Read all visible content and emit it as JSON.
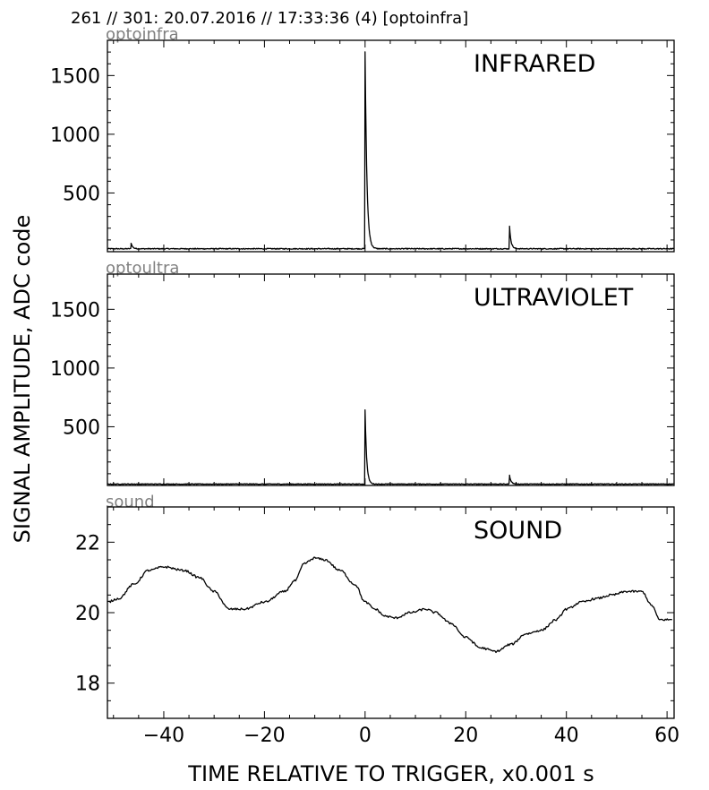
{
  "header": "261 // 301:   20.07.2016 // 17:33:36 (4)  [optoinfra]",
  "ylabel": "SIGNAL AMPLITUDE,  ADC code",
  "xlabel": "TIME RELATIVE TO TRIGGER,   x0.001 s",
  "chart_data": [
    {
      "type": "line",
      "subtitle": "optoinfra",
      "title": "INFRARED",
      "xlim": [
        -51.2,
        61.4
      ],
      "ylim": [
        0,
        1800
      ],
      "yticks": [
        500,
        1000,
        1500
      ],
      "ytick_labels": [
        "500",
        "1000",
        "1500"
      ],
      "xticks": [
        -40,
        -20,
        0,
        20,
        40,
        60
      ],
      "baseline": 25,
      "noise": 4,
      "events": [
        {
          "x": 0.0,
          "y": 1680,
          "decay": 0.35
        },
        {
          "x": 28.7,
          "y": 190,
          "decay": 0.3
        },
        {
          "x": -46.5,
          "y": 50,
          "decay": 0.3
        }
      ],
      "series": [
        {
          "values": [],
          "color": "#000000"
        }
      ]
    },
    {
      "type": "line",
      "subtitle": "optoultra",
      "title": "ULTRAVIOLET",
      "xlim": [
        -51.2,
        61.4
      ],
      "ylim": [
        0,
        1800
      ],
      "yticks": [
        500,
        1000,
        1500
      ],
      "ytick_labels": [
        "500",
        "1000",
        "1500"
      ],
      "xticks": [
        -40,
        -20,
        0,
        20,
        40,
        60
      ],
      "baseline": 12,
      "noise": 3,
      "events": [
        {
          "x": 0.0,
          "y": 630,
          "decay": 0.3
        },
        {
          "x": 28.7,
          "y": 75,
          "decay": 0.3
        }
      ],
      "series": [
        {
          "values": [],
          "color": "#000000"
        }
      ]
    },
    {
      "type": "line",
      "subtitle": "sound",
      "title": "SOUND",
      "xlim": [
        -51.2,
        61.4
      ],
      "ylim": [
        17,
        23
      ],
      "yticks": [
        18,
        20,
        22
      ],
      "ytick_labels": [
        "18",
        "20",
        "22"
      ],
      "xticks": [
        -40,
        -20,
        0,
        20,
        40,
        60
      ],
      "xtick_labels": [
        "−40",
        "−20",
        "0",
        "20",
        "40",
        "60"
      ],
      "series": [
        {
          "color": "#000000",
          "points": [
            [
              -51.2,
              20.3
            ],
            [
              -49,
              20.4
            ],
            [
              -46,
              20.8
            ],
            [
              -43,
              21.2
            ],
            [
              -40,
              21.3
            ],
            [
              -36,
              21.2
            ],
            [
              -33,
              21.0
            ],
            [
              -30,
              20.6
            ],
            [
              -27,
              20.1
            ],
            [
              -24,
              20.1
            ],
            [
              -20,
              20.3
            ],
            [
              -16,
              20.6
            ],
            [
              -14,
              20.9
            ],
            [
              -12,
              21.4
            ],
            [
              -10,
              21.55
            ],
            [
              -8,
              21.5
            ],
            [
              -5,
              21.2
            ],
            [
              -2,
              20.8
            ],
            [
              0,
              20.3
            ],
            [
              2,
              20.1
            ],
            [
              4,
              19.9
            ],
            [
              6,
              19.85
            ],
            [
              9,
              20.0
            ],
            [
              12,
              20.1
            ],
            [
              14,
              20.0
            ],
            [
              17,
              19.7
            ],
            [
              20,
              19.3
            ],
            [
              23,
              19.0
            ],
            [
              26,
              18.9
            ],
            [
              29,
              19.1
            ],
            [
              32,
              19.4
            ],
            [
              35,
              19.5
            ],
            [
              38,
              19.8
            ],
            [
              40,
              20.1
            ],
            [
              43,
              20.3
            ],
            [
              46,
              20.4
            ],
            [
              49,
              20.5
            ],
            [
              52,
              20.6
            ],
            [
              55,
              20.6
            ],
            [
              57,
              20.2
            ],
            [
              58.5,
              19.8
            ],
            [
              61,
              19.8
            ]
          ]
        }
      ]
    }
  ]
}
